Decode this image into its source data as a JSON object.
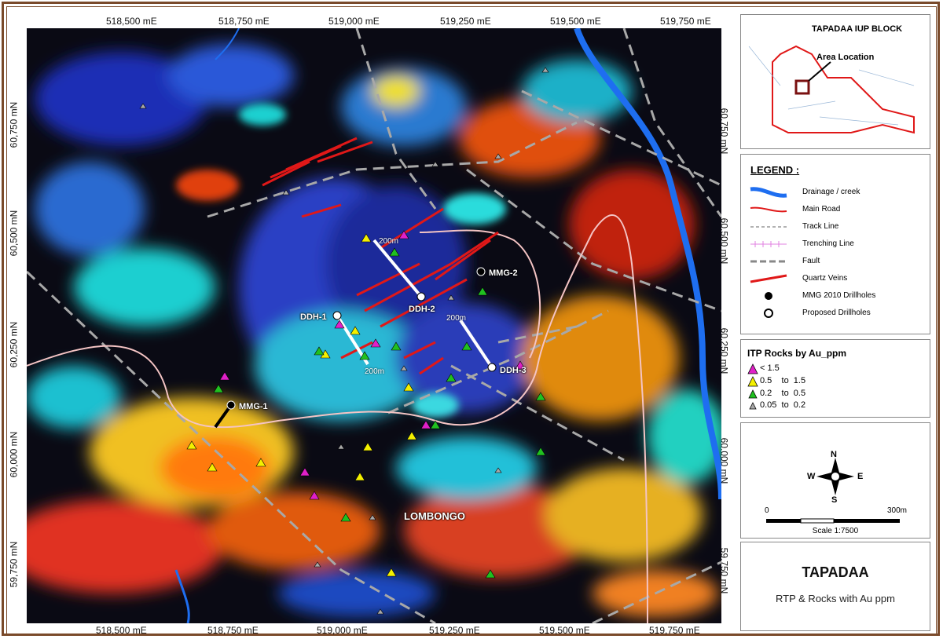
{
  "top_axis": [
    "518,500 mE",
    "518,750 mE",
    "519,000 mE",
    "519,250 mE",
    "519,500 mE",
    "519,750 mE"
  ],
  "bottom_axis": [
    "518,500 mE",
    "518,750 mE",
    "519,000 mE",
    "519,250 mE",
    "519,500 mE",
    "519,750 mE"
  ],
  "left_axis": [
    "60,750 mN",
    "60,500 mN",
    "60,250 mN",
    "60,000 mN",
    "59,750 mN"
  ],
  "right_axis": [
    "60,750 mN",
    "60,500 mN",
    "60,250 mN",
    "60,000 mN",
    "59,750 mN"
  ],
  "inset": {
    "title": "TAPADAA IUP BLOCK",
    "area_label": "Area Location"
  },
  "legend": {
    "title": "LEGEND :",
    "items": [
      {
        "label": "Drainage / creek"
      },
      {
        "label": "Main Road"
      },
      {
        "label": "Track Line"
      },
      {
        "label": "Trenching Line"
      },
      {
        "label": "Fault"
      },
      {
        "label": "Quartz Veins"
      },
      {
        "label": "MMG 2010 Drillholes"
      },
      {
        "label": "Proposed Drillholes"
      }
    ]
  },
  "rocks": {
    "title": "ITP Rocks by Au_ppm",
    "classes": [
      {
        "label": "< 1.5",
        "color": "#e020c8"
      },
      {
        "label": "0.5    to  1.5",
        "color": "#f4f000"
      },
      {
        "label": "0.2    to  0.5",
        "color": "#20c020"
      },
      {
        "label": "0.05  to  0.2",
        "color": "#a8a8a8"
      }
    ]
  },
  "scale": {
    "north": "N",
    "south": "S",
    "east": "E",
    "west": "W",
    "start": "0",
    "end": "300m",
    "ratio": "Scale 1:7500"
  },
  "title_box": {
    "title": "TAPADAA",
    "subtitle": "RTP & Rocks with Au ppm"
  },
  "map_labels": {
    "ddh1": "DDH-1",
    "ddh2": "DDH-2",
    "ddh3": "DDH-3",
    "mmg1": "MMG-1",
    "mmg2": "MMG-2",
    "lombongo": "LOMBONGO",
    "len": "200m"
  }
}
